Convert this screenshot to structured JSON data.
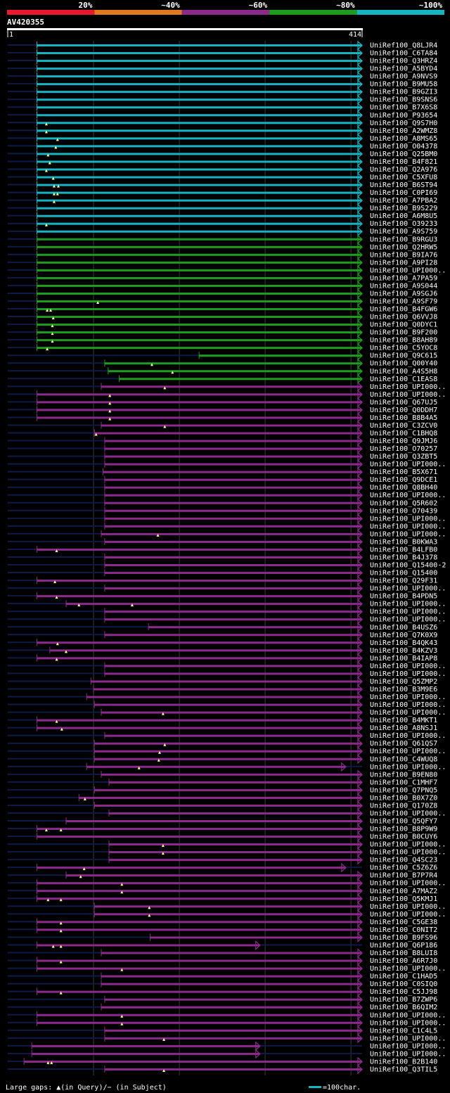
{
  "chart_data": {
    "type": "alignment-overview",
    "title": "AV420355",
    "query_start": "1",
    "query_end": "414",
    "query_length": 414,
    "legend_bands": [
      {
        "label": "20%",
        "color": "#e8192c"
      },
      {
        "label": "~40%",
        "color": "#e07a1f"
      },
      {
        "label": "~60%",
        "color": "#8c2a8c"
      },
      {
        "label": "~80%",
        "color": "#1e9c1e"
      },
      {
        "label": "~100%",
        "color": "#16b4c0"
      }
    ],
    "footer": {
      "gap_text": "Large gaps: ▲(in Query)/− (in Subject)",
      "scale_text": "=100char."
    },
    "hits": [
      [
        "UniRef100_Q8LJR4",
        "c",
        35,
        414,
        []
      ],
      [
        "UniRef100_C6TA84",
        "c",
        35,
        414,
        []
      ],
      [
        "UniRef100_Q3HRZ4",
        "c",
        35,
        414,
        []
      ],
      [
        "UniRef100_A5BYD4",
        "c",
        35,
        414,
        []
      ],
      [
        "UniRef100_A9NVS9",
        "c",
        35,
        414,
        []
      ],
      [
        "UniRef100_B9MU58",
        "c",
        35,
        414,
        []
      ],
      [
        "UniRef100_B9GZI3",
        "c",
        35,
        414,
        []
      ],
      [
        "UniRef100_B9SNS6",
        "c",
        35,
        414,
        []
      ],
      [
        "UniRef100_B7X6S8",
        "c",
        35,
        414,
        []
      ],
      [
        "UniRef100_P93654",
        "c",
        35,
        414,
        []
      ],
      [
        "UniRef100_Q9S7H0",
        "c",
        35,
        414,
        [
          46
        ]
      ],
      [
        "UniRef100_A2WMZ8",
        "c",
        35,
        414,
        [
          46
        ]
      ],
      [
        "UniRef100_A8MS65",
        "c",
        35,
        414,
        [
          59
        ]
      ],
      [
        "UniRef100_O04378",
        "c",
        35,
        414,
        [
          57
        ]
      ],
      [
        "UniRef100_Q25BM0",
        "c",
        35,
        414,
        [
          48
        ]
      ],
      [
        "UniRef100_B4F821",
        "c",
        35,
        414,
        [
          50
        ]
      ],
      [
        "UniRef100_Q2A976",
        "c",
        35,
        414,
        [
          46
        ]
      ],
      [
        "UniRef100_C5XFU8",
        "c",
        35,
        414,
        [
          54
        ]
      ],
      [
        "UniRef100_B6ST94",
        "c",
        35,
        414,
        [
          55,
          60
        ]
      ],
      [
        "UniRef100_C0PI69",
        "c",
        35,
        414,
        [
          55,
          59
        ]
      ],
      [
        "UniRef100_A7PBA2",
        "c",
        35,
        414,
        [
          55
        ]
      ],
      [
        "UniRef100_B9S229",
        "c",
        35,
        414,
        []
      ],
      [
        "UniRef100_A6M8U5",
        "c",
        35,
        414,
        []
      ],
      [
        "UniRef100_O39233",
        "c",
        35,
        414,
        [
          46
        ]
      ],
      [
        "UniRef100_A9S759",
        "c",
        35,
        414,
        []
      ],
      [
        "UniRef100_B9RGU3",
        "g",
        35,
        414,
        []
      ],
      [
        "UniRef100_Q2HRW5",
        "g",
        35,
        414,
        []
      ],
      [
        "UniRef100_B9IA76",
        "g",
        35,
        414,
        []
      ],
      [
        "UniRef100_A9PI28",
        "g",
        35,
        414,
        []
      ],
      [
        "UniRef100_UPI000..",
        "g",
        35,
        414,
        []
      ],
      [
        "UniRef100_A7PA59",
        "g",
        35,
        414,
        []
      ],
      [
        "UniRef100_A9S044",
        "g",
        35,
        414,
        []
      ],
      [
        "UniRef100_A9SGJ6",
        "g",
        35,
        414,
        []
      ],
      [
        "UniRef100_A9SF79",
        "g",
        35,
        414,
        [
          106
        ]
      ],
      [
        "UniRef100_B4FGW6",
        "g",
        35,
        414,
        [
          47,
          51
        ]
      ],
      [
        "UniRef100_Q6VVJ8",
        "g",
        35,
        414,
        [
          54
        ]
      ],
      [
        "UniRef100_Q0DYC1",
        "g",
        35,
        414,
        [
          53
        ]
      ],
      [
        "UniRef100_B9F200",
        "g",
        35,
        414,
        [
          53
        ]
      ],
      [
        "UniRef100_B8AH89",
        "g",
        35,
        414,
        [
          53
        ]
      ],
      [
        "UniRef100_C5YOC8",
        "g",
        35,
        414,
        [
          47
        ]
      ],
      [
        "UniRef100_Q9C615",
        "g",
        224,
        414,
        []
      ],
      [
        "UniRef100_Q00Y40",
        "g",
        114,
        414,
        [
          169
        ]
      ],
      [
        "UniRef100_A4S5H8",
        "g",
        118,
        414,
        [
          193
        ]
      ],
      [
        "UniRef100_C1EAS8",
        "g",
        131,
        414,
        []
      ],
      [
        "UniRef100_UPI000..",
        "p",
        110,
        414,
        [
          184
        ]
      ],
      [
        "UniRef100_UPI000..",
        "p",
        35,
        414,
        [
          120
        ]
      ],
      [
        "UniRef100_Q67UJ5",
        "p",
        35,
        414,
        [
          120
        ]
      ],
      [
        "UniRef100_Q0DDH7",
        "p",
        35,
        414,
        [
          120
        ]
      ],
      [
        "UniRef100_B8B4A5",
        "p",
        35,
        414,
        [
          120
        ]
      ],
      [
        "UniRef100_C3ZCV0",
        "p",
        110,
        414,
        [
          184
        ]
      ],
      [
        "UniRef100_C1BHQ8",
        "p",
        102,
        414,
        [
          104
        ]
      ],
      [
        "UniRef100_Q9JMJ6",
        "p",
        114,
        414,
        []
      ],
      [
        "UniRef100_O70257",
        "p",
        114,
        414,
        []
      ],
      [
        "UniRef100_Q3ZBT5",
        "p",
        114,
        414,
        []
      ],
      [
        "UniRef100_UPI000..",
        "p",
        114,
        414,
        []
      ],
      [
        "UniRef100_B5X671",
        "p",
        112,
        414,
        []
      ],
      [
        "UniRef100_Q9DCE1",
        "p",
        114,
        414,
        []
      ],
      [
        "UniRef100_Q8BH40",
        "p",
        114,
        414,
        []
      ],
      [
        "UniRef100_UPI000..",
        "p",
        114,
        414,
        []
      ],
      [
        "UniRef100_Q5R602",
        "p",
        114,
        414,
        []
      ],
      [
        "UniRef100_O70439",
        "p",
        114,
        414,
        []
      ],
      [
        "UniRef100_UPI000..",
        "p",
        114,
        414,
        []
      ],
      [
        "UniRef100_UPI000..",
        "p",
        114,
        414,
        []
      ],
      [
        "UniRef100_UPI000..",
        "p",
        110,
        414,
        [
          176
        ]
      ],
      [
        "UniRef100_B0KWA3",
        "p",
        114,
        414,
        []
      ],
      [
        "UniRef100_B4LFB0",
        "p",
        35,
        414,
        [
          58
        ]
      ],
      [
        "UniRef100_B4J378",
        "p",
        114,
        414,
        []
      ],
      [
        "UniRef100_Q15400-2",
        "p",
        114,
        414,
        []
      ],
      [
        "UniRef100_Q15400",
        "p",
        114,
        414,
        []
      ],
      [
        "UniRef100_Q29F31",
        "p",
        35,
        414,
        [
          56
        ]
      ],
      [
        "UniRef100_UPI000..",
        "p",
        114,
        414,
        []
      ],
      [
        "UniRef100_B4PDN5",
        "p",
        35,
        414,
        [
          58
        ]
      ],
      [
        "UniRef100_UPI000..",
        "p",
        69,
        414,
        [
          84,
          146
        ]
      ],
      [
        "UniRef100_UPI000..",
        "p",
        114,
        414,
        []
      ],
      [
        "UniRef100_UPI000..",
        "p",
        114,
        414,
        []
      ],
      [
        "UniRef100_B4USZ6",
        "p",
        165,
        414,
        []
      ],
      [
        "UniRef100_Q7K0X9",
        "p",
        114,
        414,
        []
      ],
      [
        "UniRef100_B4QK43",
        "p",
        35,
        414,
        [
          59
        ]
      ],
      [
        "UniRef100_B4KZV3",
        "p",
        50,
        414,
        [
          69
        ]
      ],
      [
        "UniRef100_B4IAP8",
        "p",
        35,
        414,
        [
          58
        ]
      ],
      [
        "UniRef100_UPI000..",
        "p",
        114,
        414,
        []
      ],
      [
        "UniRef100_UPI000..",
        "p",
        114,
        414,
        []
      ],
      [
        "UniRef100_Q5ZMP2",
        "p",
        98,
        414,
        []
      ],
      [
        "UniRef100_B3M9E6",
        "p",
        101,
        414,
        []
      ],
      [
        "UniRef100_UPI000..",
        "p",
        93,
        414,
        []
      ],
      [
        "UniRef100_UPI000..",
        "p",
        102,
        414,
        []
      ],
      [
        "UniRef100_UPI000..",
        "p",
        110,
        414,
        [
          182
        ]
      ],
      [
        "UniRef100_B4MKT1",
        "p",
        35,
        414,
        [
          58
        ]
      ],
      [
        "UniRef100_A8NSJ1",
        "p",
        35,
        414,
        [
          64
        ]
      ],
      [
        "UniRef100_UPI000..",
        "p",
        114,
        414,
        []
      ],
      [
        "UniRef100_Q61QS7",
        "p",
        102,
        414,
        [
          184
        ]
      ],
      [
        "UniRef100_UPI000..",
        "p",
        102,
        414,
        [
          178
        ]
      ],
      [
        "UniRef100_C4WUQ8",
        "p",
        102,
        414,
        [
          177
        ]
      ],
      [
        "UniRef100_UPI000..",
        "p",
        93,
        395,
        [
          154
        ]
      ],
      [
        "UniRef100_B9EN80",
        "p",
        110,
        414,
        []
      ],
      [
        "UniRef100_C1MHF7",
        "p",
        119,
        414,
        []
      ],
      [
        "UniRef100_Q7PNQ5",
        "p",
        102,
        414,
        []
      ],
      [
        "UniRef100_B0X7Z0",
        "p",
        84,
        414,
        [
          91
        ]
      ],
      [
        "UniRef100_Q170Z8",
        "p",
        102,
        414,
        []
      ],
      [
        "UniRef100_UPI000..",
        "p",
        119,
        414,
        []
      ],
      [
        "UniRef100_Q5QFY7",
        "p",
        69,
        414,
        []
      ],
      [
        "UniRef100_B8P9W9",
        "p",
        35,
        414,
        [
          46,
          63
        ]
      ],
      [
        "UniRef100_B0CUY6",
        "p",
        35,
        414,
        []
      ],
      [
        "UniRef100_UPI000..",
        "p",
        119,
        414,
        [
          182
        ]
      ],
      [
        "UniRef100_UPI000..",
        "p",
        119,
        414,
        [
          182
        ]
      ],
      [
        "UniRef100_Q4SC23",
        "p",
        119,
        414,
        []
      ],
      [
        "UniRef100_C5Z6Z6",
        "p",
        35,
        395,
        [
          90
        ]
      ],
      [
        "UniRef100_B7P7R4",
        "p",
        69,
        414,
        [
          86
        ]
      ],
      [
        "UniRef100_UPI000..",
        "p",
        35,
        414,
        [
          134
        ]
      ],
      [
        "UniRef100_A7MAZ2",
        "p",
        35,
        414,
        [
          134
        ]
      ],
      [
        "UniRef100_Q5KMJ1",
        "p",
        35,
        414,
        [
          48,
          63
        ]
      ],
      [
        "UniRef100_UPI000..",
        "p",
        102,
        414,
        [
          166
        ]
      ],
      [
        "UniRef100_UPI000..",
        "p",
        102,
        414,
        [
          166
        ]
      ],
      [
        "UniRef100_C5GE38",
        "p",
        35,
        414,
        [
          63
        ]
      ],
      [
        "UniRef100_C0NIT2",
        "p",
        35,
        414,
        [
          63
        ]
      ],
      [
        "UniRef100_B9FS96",
        "p",
        167,
        414,
        []
      ],
      [
        "UniRef100_Q6P186",
        "p",
        35,
        295,
        [
          54,
          63
        ]
      ],
      [
        "UniRef100_B8LUI8",
        "p",
        110,
        414,
        []
      ],
      [
        "UniRef100_A6R7J0",
        "p",
        35,
        414,
        [
          63
        ]
      ],
      [
        "UniRef100_UPI000..",
        "p",
        35,
        414,
        [
          134
        ]
      ],
      [
        "UniRef100_C1HAD5",
        "p",
        110,
        414,
        []
      ],
      [
        "UniRef100_C0SIQ0",
        "p",
        110,
        414,
        []
      ],
      [
        "UniRef100_C5JJ98",
        "p",
        35,
        414,
        [
          63
        ]
      ],
      [
        "UniRef100_B7ZWP6",
        "p",
        114,
        414,
        []
      ],
      [
        "UniRef100_B6QIM2",
        "p",
        110,
        414,
        []
      ],
      [
        "UniRef100_UPI000..",
        "p",
        35,
        414,
        [
          134
        ]
      ],
      [
        "UniRef100_UPI000..",
        "p",
        35,
        414,
        [
          134
        ]
      ],
      [
        "UniRef100_C1C4L5",
        "p",
        114,
        414,
        []
      ],
      [
        "UniRef100_UPI000..",
        "p",
        114,
        414,
        [
          183
        ]
      ],
      [
        "UniRef100_UPI000..",
        "p",
        29,
        295,
        []
      ],
      [
        "UniRef100_UPI000..",
        "p",
        29,
        295,
        []
      ],
      [
        "UniRef100_B2B140",
        "p",
        20,
        414,
        [
          48,
          52
        ]
      ],
      [
        "UniRef100_Q3TIL5",
        "p",
        114,
        414,
        [
          183
        ]
      ]
    ]
  }
}
